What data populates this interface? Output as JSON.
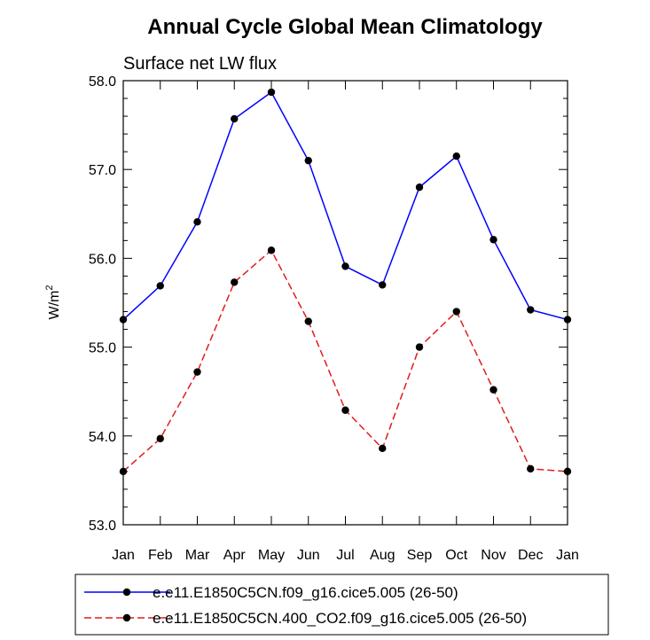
{
  "chart_data": {
    "type": "line",
    "title": "Annual Cycle Global Mean Climatology",
    "subtitle": "Surface net LW flux",
    "ylabel": "W/m",
    "ylabel_sup": "2",
    "ylim": [
      53.0,
      58.0
    ],
    "y_ticks": [
      "53.0",
      "54.0",
      "55.0",
      "56.0",
      "57.0",
      "58.0"
    ],
    "categories": [
      "Jan",
      "Feb",
      "Mar",
      "Apr",
      "May",
      "Jun",
      "Jul",
      "Aug",
      "Sep",
      "Oct",
      "Nov",
      "Dec",
      "Jan"
    ],
    "grid": false,
    "legend_position": "bottom",
    "series": [
      {
        "name": "e.e11.E1850C5CN.f09_g16.cice5.005 (26-50)",
        "color": "#0000ff",
        "style": "solid",
        "marker": "circle",
        "values": [
          55.31,
          55.69,
          56.41,
          57.57,
          57.87,
          57.1,
          55.91,
          55.7,
          56.8,
          57.15,
          56.21,
          55.42,
          55.31
        ]
      },
      {
        "name": "e.e11.E1850C5CN.400_CO2.f09_g16.cice5.005 (26-50)",
        "color": "#e31a1c",
        "style": "dashed",
        "marker": "circle",
        "values": [
          53.6,
          53.97,
          54.72,
          55.73,
          56.09,
          55.29,
          54.29,
          53.86,
          55.0,
          55.4,
          54.52,
          53.63,
          53.6
        ]
      }
    ]
  }
}
